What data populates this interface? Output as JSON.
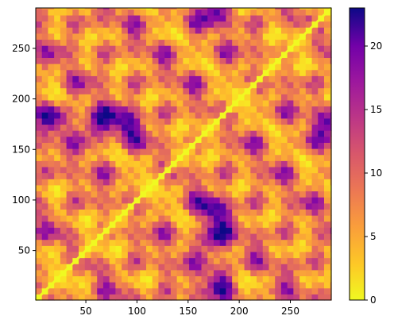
{
  "chart_data": {
    "type": "heatmap",
    "title": "",
    "xlabel": "",
    "ylabel": "",
    "xlim": [
      1,
      290
    ],
    "ylim": [
      1,
      290
    ],
    "x_ticks": [
      {
        "value": 50,
        "label": "50"
      },
      {
        "value": 100,
        "label": "100"
      },
      {
        "value": 150,
        "label": "150"
      },
      {
        "value": 200,
        "label": "200"
      },
      {
        "value": 250,
        "label": "250"
      }
    ],
    "y_ticks": [
      {
        "value": 50,
        "label": "50"
      },
      {
        "value": 100,
        "label": "100"
      },
      {
        "value": 150,
        "label": "150"
      },
      {
        "value": 200,
        "label": "200"
      },
      {
        "value": 250,
        "label": "250"
      }
    ],
    "colorbar": {
      "colormap": "plasma_r",
      "min": 0,
      "max": 23,
      "ticks": [
        {
          "value": 0,
          "label": "0"
        },
        {
          "value": 5,
          "label": "5"
        },
        {
          "value": 10,
          "label": "10"
        },
        {
          "value": 15,
          "label": "15"
        },
        {
          "value": 20,
          "label": "20"
        }
      ]
    },
    "matrix": {
      "description_symmetric": true,
      "diagonal_value": 0,
      "dark_regions": [
        {
          "x": 60,
          "y": 175,
          "value": 22
        },
        {
          "x": 90,
          "y": 175,
          "value": 21
        },
        {
          "x": 175,
          "y": 60,
          "value": 22
        },
        {
          "x": 175,
          "y": 90,
          "value": 21
        },
        {
          "x": 288,
          "y": 175,
          "value": 20
        },
        {
          "x": 175,
          "y": 288,
          "value": 20
        },
        {
          "x": 180,
          "y": 20,
          "value": 19
        },
        {
          "x": 20,
          "y": 180,
          "value": 19
        }
      ]
    }
  }
}
